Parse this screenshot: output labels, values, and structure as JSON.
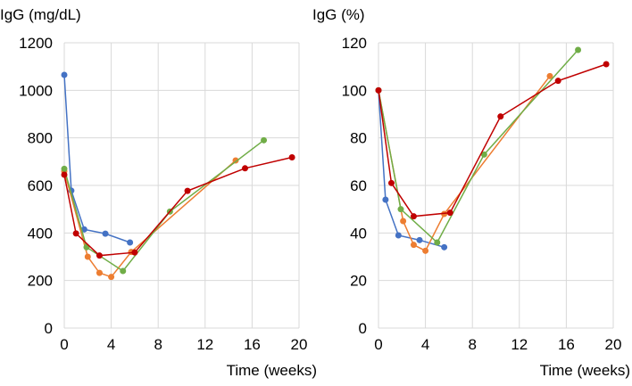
{
  "chart_data": [
    {
      "type": "line",
      "ylabel": "IgG (mg/dL)",
      "xlabel": "Time (weeks)",
      "xlim": [
        0,
        20
      ],
      "ylim": [
        0,
        1200
      ],
      "xticks": [
        0,
        4,
        8,
        12,
        16,
        20
      ],
      "yticks": [
        0,
        200,
        400,
        600,
        800,
        1000,
        1200
      ],
      "grid": true,
      "series": [
        {
          "name": "blue",
          "color": "#4472c4",
          "points": [
            [
              0,
              1065
            ],
            [
              0.6,
              578
            ],
            [
              1.7,
              415
            ],
            [
              3.5,
              397
            ],
            [
              5.6,
              360
            ]
          ]
        },
        {
          "name": "orange",
          "color": "#ed7d31",
          "points": [
            [
              0,
              660
            ],
            [
              2.0,
              300
            ],
            [
              3.0,
              232
            ],
            [
              4.0,
              215
            ],
            [
              5.7,
              320
            ],
            [
              14.6,
              705
            ]
          ]
        },
        {
          "name": "green",
          "color": "#70ad47",
          "points": [
            [
              0,
              670
            ],
            [
              1.9,
              340
            ],
            [
              5.0,
              240
            ],
            [
              9.0,
              490
            ],
            [
              17.0,
              790
            ]
          ]
        },
        {
          "name": "red",
          "color": "#c00000",
          "points": [
            [
              0,
              645
            ],
            [
              1.0,
              398
            ],
            [
              3.0,
              305
            ],
            [
              6.0,
              318
            ],
            [
              10.5,
              577
            ],
            [
              15.4,
              672
            ],
            [
              19.4,
              718
            ]
          ]
        }
      ]
    },
    {
      "type": "line",
      "ylabel": "IgG (%)",
      "xlabel": "Time (weeks)",
      "xlim": [
        0,
        20
      ],
      "ylim": [
        0,
        120
      ],
      "xticks": [
        0,
        4,
        8,
        12,
        16,
        20
      ],
      "yticks": [
        0,
        20,
        40,
        60,
        80,
        100,
        120
      ],
      "grid": true,
      "series": [
        {
          "name": "blue",
          "color": "#4472c4",
          "points": [
            [
              0,
              100
            ],
            [
              0.6,
              54
            ],
            [
              1.7,
              39
            ],
            [
              3.5,
              37
            ],
            [
              5.6,
              34
            ]
          ]
        },
        {
          "name": "orange",
          "color": "#ed7d31",
          "points": [
            [
              0,
              100
            ],
            [
              2.1,
              45
            ],
            [
              3.0,
              35
            ],
            [
              4.0,
              32.5
            ],
            [
              5.6,
              48
            ],
            [
              14.6,
              106
            ]
          ]
        },
        {
          "name": "green",
          "color": "#70ad47",
          "points": [
            [
              0,
              100
            ],
            [
              1.9,
              50
            ],
            [
              5.0,
              36
            ],
            [
              9.0,
              73
            ],
            [
              17.0,
              117
            ]
          ]
        },
        {
          "name": "red",
          "color": "#c00000",
          "points": [
            [
              0,
              100
            ],
            [
              1.1,
              61
            ],
            [
              3.0,
              47
            ],
            [
              6.1,
              48.5
            ],
            [
              10.4,
              89
            ],
            [
              15.3,
              104
            ],
            [
              19.4,
              111
            ]
          ]
        }
      ]
    }
  ]
}
